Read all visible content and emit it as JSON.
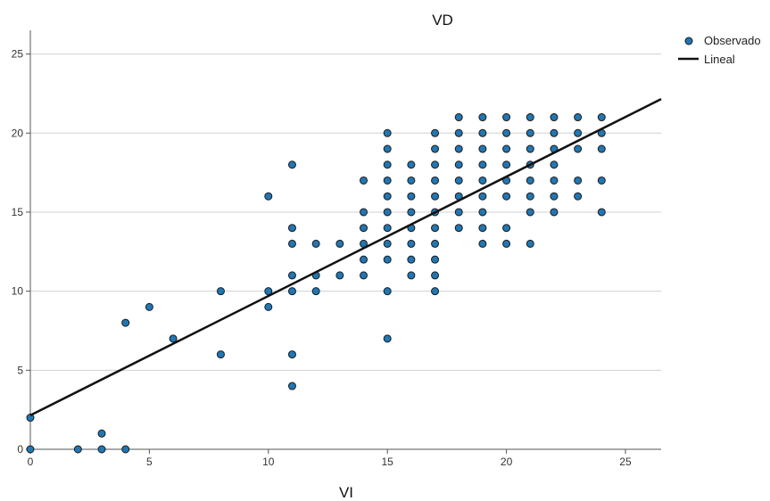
{
  "chart_data": {
    "type": "scatter",
    "title": "VD",
    "xlabel": "VI",
    "ylabel": "",
    "xlim": [
      0,
      26.5
    ],
    "ylim": [
      0,
      26.5
    ],
    "x_ticks": [
      0,
      5,
      10,
      15,
      20,
      25
    ],
    "y_ticks": [
      0,
      5,
      10,
      15,
      20,
      25
    ],
    "grid": "horizontal",
    "legend_position": "top-right",
    "colors": {
      "points": "#1f77b4",
      "point_edge": "#1a1a1a",
      "line": "#111111",
      "grid": "#d0d0d0"
    },
    "series": [
      {
        "name": "Observado",
        "kind": "scatter",
        "points": [
          [
            0,
            0
          ],
          [
            0,
            2
          ],
          [
            2,
            0
          ],
          [
            3,
            0
          ],
          [
            3,
            1
          ],
          [
            4,
            0
          ],
          [
            4,
            8
          ],
          [
            5,
            9
          ],
          [
            6,
            7
          ],
          [
            8,
            6
          ],
          [
            8,
            10
          ],
          [
            10,
            9
          ],
          [
            10,
            10
          ],
          [
            10,
            16
          ],
          [
            11,
            4
          ],
          [
            11,
            6
          ],
          [
            11,
            10
          ],
          [
            11,
            11
          ],
          [
            11,
            13
          ],
          [
            11,
            14
          ],
          [
            11,
            18
          ],
          [
            12,
            10
          ],
          [
            12,
            11
          ],
          [
            12,
            13
          ],
          [
            13,
            11
          ],
          [
            13,
            13
          ],
          [
            14,
            11
          ],
          [
            14,
            12
          ],
          [
            14,
            13
          ],
          [
            14,
            14
          ],
          [
            14,
            15
          ],
          [
            14,
            17
          ],
          [
            15,
            7
          ],
          [
            15,
            10
          ],
          [
            15,
            12
          ],
          [
            15,
            13
          ],
          [
            15,
            14
          ],
          [
            15,
            15
          ],
          [
            15,
            16
          ],
          [
            15,
            17
          ],
          [
            15,
            18
          ],
          [
            15,
            19
          ],
          [
            15,
            20
          ],
          [
            16,
            11
          ],
          [
            16,
            12
          ],
          [
            16,
            13
          ],
          [
            16,
            14
          ],
          [
            16,
            15
          ],
          [
            16,
            16
          ],
          [
            16,
            17
          ],
          [
            16,
            18
          ],
          [
            17,
            10
          ],
          [
            17,
            11
          ],
          [
            17,
            12
          ],
          [
            17,
            13
          ],
          [
            17,
            14
          ],
          [
            17,
            15
          ],
          [
            17,
            16
          ],
          [
            17,
            17
          ],
          [
            17,
            18
          ],
          [
            17,
            19
          ],
          [
            17,
            20
          ],
          [
            18,
            14
          ],
          [
            18,
            15
          ],
          [
            18,
            16
          ],
          [
            18,
            17
          ],
          [
            18,
            18
          ],
          [
            18,
            19
          ],
          [
            18,
            20
          ],
          [
            18,
            21
          ],
          [
            19,
            13
          ],
          [
            19,
            14
          ],
          [
            19,
            15
          ],
          [
            19,
            16
          ],
          [
            19,
            17
          ],
          [
            19,
            18
          ],
          [
            19,
            19
          ],
          [
            19,
            20
          ],
          [
            19,
            21
          ],
          [
            20,
            13
          ],
          [
            20,
            14
          ],
          [
            20,
            16
          ],
          [
            20,
            17
          ],
          [
            20,
            18
          ],
          [
            20,
            19
          ],
          [
            20,
            20
          ],
          [
            20,
            21
          ],
          [
            21,
            13
          ],
          [
            21,
            15
          ],
          [
            21,
            16
          ],
          [
            21,
            17
          ],
          [
            21,
            18
          ],
          [
            21,
            19
          ],
          [
            21,
            20
          ],
          [
            21,
            21
          ],
          [
            22,
            15
          ],
          [
            22,
            16
          ],
          [
            22,
            17
          ],
          [
            22,
            18
          ],
          [
            22,
            19
          ],
          [
            22,
            20
          ],
          [
            22,
            21
          ],
          [
            23,
            16
          ],
          [
            23,
            17
          ],
          [
            23,
            19
          ],
          [
            23,
            20
          ],
          [
            23,
            21
          ],
          [
            24,
            15
          ],
          [
            24,
            17
          ],
          [
            24,
            19
          ],
          [
            24,
            20
          ],
          [
            24,
            21
          ]
        ]
      },
      {
        "name": "Lineal",
        "kind": "line",
        "x": [
          0,
          26.5
        ],
        "y": [
          2.15,
          22.15
        ]
      }
    ]
  }
}
